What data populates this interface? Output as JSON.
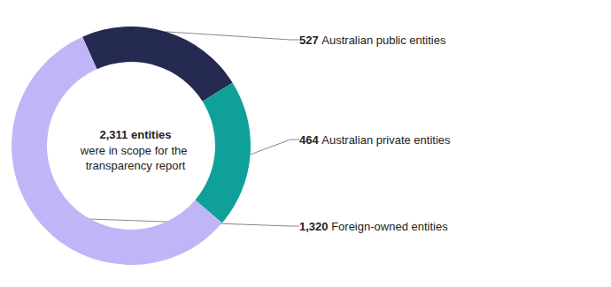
{
  "chart_data": {
    "type": "pie",
    "donut": true,
    "title": "2,311 entities",
    "subtitle": "were in scope for the transparency report",
    "categories": [
      "Australian public entities",
      "Australian private entities",
      "Foreign-owned entities"
    ],
    "values": [
      527,
      464,
      1320
    ],
    "value_labels": [
      "527",
      "464",
      "1,320"
    ],
    "colors": [
      "#252a50",
      "#10a09a",
      "#c0b6f7"
    ],
    "data_labels": true
  }
}
